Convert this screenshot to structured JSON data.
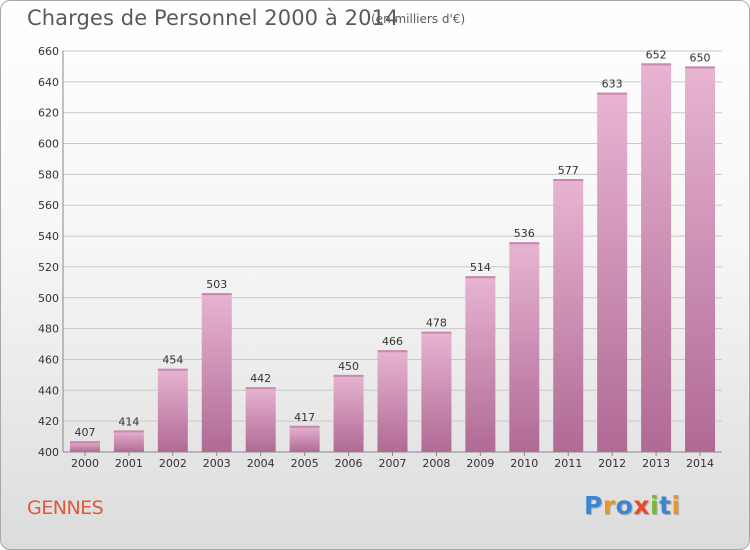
{
  "chart_data": {
    "type": "bar",
    "title": "Charges de Personnel 2000 à 2014",
    "subtitle": "(en milliers d'€)",
    "categories": [
      "2000",
      "2001",
      "2002",
      "2003",
      "2004",
      "2005",
      "2006",
      "2007",
      "2008",
      "2009",
      "2010",
      "2011",
      "2012",
      "2013",
      "2014"
    ],
    "values": [
      407,
      414,
      454,
      503,
      442,
      417,
      450,
      466,
      478,
      514,
      536,
      577,
      633,
      652,
      650
    ],
    "ylim": [
      400,
      660
    ],
    "yticks": [
      400,
      420,
      440,
      460,
      480,
      500,
      520,
      540,
      560,
      580,
      600,
      620,
      640,
      660
    ],
    "grid": true,
    "colors": {
      "bar_light": "#e8b4d2",
      "bar_dark": "#b06a94",
      "grid": "#c8c8c8"
    }
  },
  "footer": {
    "town": "GENNES",
    "logo_letters": [
      "P",
      "r",
      "o",
      "x",
      "i",
      "t",
      "i"
    ]
  }
}
